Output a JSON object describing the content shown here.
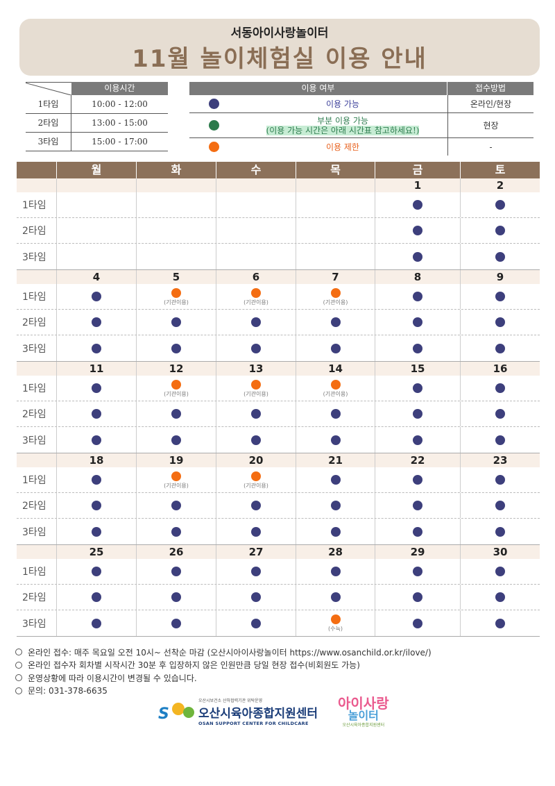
{
  "header": {
    "subtitle": "서동아이사랑놀이터",
    "title": "11월 놀이체험실 이용 안내"
  },
  "timetable": {
    "header": "이용시간",
    "rows": [
      {
        "name": "1타임",
        "time": "10:00 - 12:00"
      },
      {
        "name": "2타임",
        "time": "13:00 - 15:00"
      },
      {
        "name": "3타임",
        "time": "15:00 - 17:00"
      }
    ]
  },
  "status_table": {
    "header_usage": "이용 여부",
    "header_method": "접수방법",
    "rows": [
      {
        "color": "#3d3f7c",
        "text": "이용 가능",
        "method": "온라인/현장"
      },
      {
        "color": "#2b7a4b",
        "text": "부분 이용 가능",
        "text2": "(이용 가능 시간은 아래 시간표 참고하세요!)",
        "method": "현장"
      },
      {
        "color": "#f46d12",
        "text": "이용 제한",
        "method": "-"
      }
    ]
  },
  "calendar": {
    "weekdays": [
      "월",
      "화",
      "수",
      "목",
      "금",
      "토"
    ],
    "slot_labels": [
      "1타임",
      "2타임",
      "3타임"
    ],
    "weeks": [
      {
        "dates": [
          "",
          "",
          "",
          "",
          "1",
          "2"
        ],
        "slots": [
          [
            null,
            null,
            null,
            null,
            {
              "s": "avail"
            },
            {
              "s": "avail"
            }
          ],
          [
            null,
            null,
            null,
            null,
            {
              "s": "avail"
            },
            {
              "s": "avail"
            }
          ],
          [
            null,
            null,
            null,
            null,
            {
              "s": "avail"
            },
            {
              "s": "avail"
            }
          ]
        ]
      },
      {
        "dates": [
          "4",
          "5",
          "6",
          "7",
          "8",
          "9"
        ],
        "slots": [
          [
            {
              "s": "avail"
            },
            {
              "s": "limit",
              "note": "(기관이용)"
            },
            {
              "s": "limit",
              "note": "(기관이용)"
            },
            {
              "s": "limit",
              "note": "(기관이용)"
            },
            {
              "s": "avail"
            },
            {
              "s": "avail"
            }
          ],
          [
            {
              "s": "avail"
            },
            {
              "s": "avail"
            },
            {
              "s": "avail"
            },
            {
              "s": "avail"
            },
            {
              "s": "avail"
            },
            {
              "s": "avail"
            }
          ],
          [
            {
              "s": "avail"
            },
            {
              "s": "avail"
            },
            {
              "s": "avail"
            },
            {
              "s": "avail"
            },
            {
              "s": "avail"
            },
            {
              "s": "avail"
            }
          ]
        ]
      },
      {
        "dates": [
          "11",
          "12",
          "13",
          "14",
          "15",
          "16"
        ],
        "slots": [
          [
            {
              "s": "avail"
            },
            {
              "s": "limit",
              "note": "(기관이용)"
            },
            {
              "s": "limit",
              "note": "(기관이용)"
            },
            {
              "s": "limit",
              "note": "(기관이용)"
            },
            {
              "s": "avail"
            },
            {
              "s": "avail"
            }
          ],
          [
            {
              "s": "avail"
            },
            {
              "s": "avail"
            },
            {
              "s": "avail"
            },
            {
              "s": "avail"
            },
            {
              "s": "avail"
            },
            {
              "s": "avail"
            }
          ],
          [
            {
              "s": "avail"
            },
            {
              "s": "avail"
            },
            {
              "s": "avail"
            },
            {
              "s": "avail"
            },
            {
              "s": "avail"
            },
            {
              "s": "avail"
            }
          ]
        ]
      },
      {
        "dates": [
          "18",
          "19",
          "20",
          "21",
          "22",
          "23"
        ],
        "slots": [
          [
            {
              "s": "avail"
            },
            {
              "s": "limit",
              "note": "(기관이용)"
            },
            {
              "s": "limit",
              "note": "(기관이용)"
            },
            {
              "s": "avail"
            },
            {
              "s": "avail"
            },
            {
              "s": "avail"
            }
          ],
          [
            {
              "s": "avail"
            },
            {
              "s": "avail"
            },
            {
              "s": "avail"
            },
            {
              "s": "avail"
            },
            {
              "s": "avail"
            },
            {
              "s": "avail"
            }
          ],
          [
            {
              "s": "avail"
            },
            {
              "s": "avail"
            },
            {
              "s": "avail"
            },
            {
              "s": "avail"
            },
            {
              "s": "avail"
            },
            {
              "s": "avail"
            }
          ]
        ]
      },
      {
        "dates": [
          "25",
          "26",
          "27",
          "28",
          "29",
          "30"
        ],
        "slots": [
          [
            {
              "s": "avail"
            },
            {
              "s": "avail"
            },
            {
              "s": "avail"
            },
            {
              "s": "avail"
            },
            {
              "s": "avail"
            },
            {
              "s": "avail"
            }
          ],
          [
            {
              "s": "avail"
            },
            {
              "s": "avail"
            },
            {
              "s": "avail"
            },
            {
              "s": "avail"
            },
            {
              "s": "avail"
            },
            {
              "s": "avail"
            }
          ],
          [
            {
              "s": "avail"
            },
            {
              "s": "avail"
            },
            {
              "s": "avail"
            },
            {
              "s": "limit",
              "note": "(수뉵)"
            },
            {
              "s": "avail"
            },
            {
              "s": "avail"
            }
          ]
        ]
      }
    ]
  },
  "notes": [
    "온라인 접수: 매주 목요일 오전 10시~ 선착순 마감 (오산시아이사랑놀이터 https://www.osanchild.or.kr/ilove/)",
    "온라인 접수자 회차별 시작시간 30분 후 입장하지 않은 인원만큼 당일 현장 접수(비회원도 가능)",
    "운영상황에 따라 이용시간이 변경될 수 있습니다.",
    "문의: 031-378-6635"
  ],
  "logos": {
    "org_small": "오산시보건소 산하협력기관 위탁운영",
    "org_name": "오산시육아종합지원센터",
    "org_en": "OSAN SUPPORT CENTER FOR CHILDCARE",
    "play_top": "아이사랑",
    "play_bottom": "놀이터",
    "play_small": "오산시육아종합지원센터"
  },
  "colors": {
    "available": "#3d3f7c",
    "partial": "#2b7a4b",
    "restricted": "#f46d12",
    "header_brown": "#8c715a",
    "banner_bg": "#e6ddd2"
  }
}
